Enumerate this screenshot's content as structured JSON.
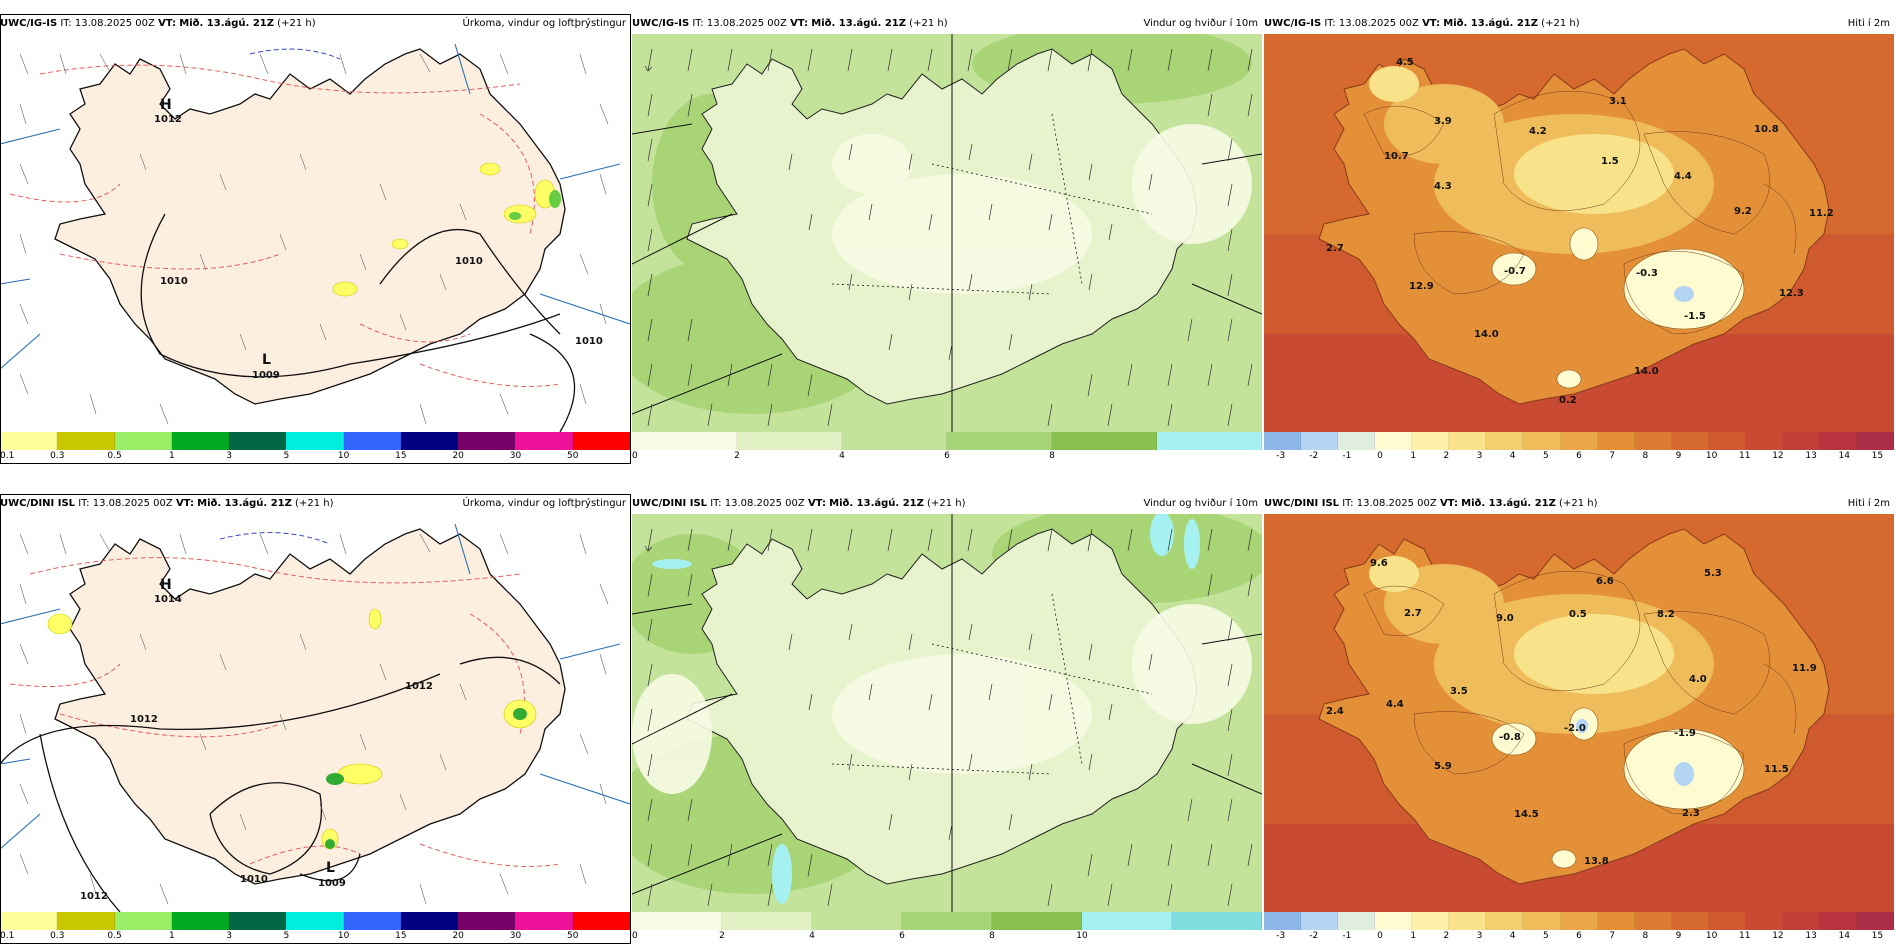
{
  "rows": [
    {
      "model": "UWC/IG-IS",
      "it_label": "IT:",
      "it": "13.08.2025 00Z",
      "vt_label": "VT:",
      "vt": "Mið. 13.ágú. 21Z",
      "lead": "(+21 h)",
      "panels": [
        {
          "kind": "precip",
          "title": "Úrkoma, vindur og loftþrýstingur",
          "H_value": "1012",
          "L_value": "1009",
          "H_label": "H",
          "L_label": "L",
          "isobar_labels": [
            "1010",
            "1010",
            "1010"
          ]
        },
        {
          "kind": "wind",
          "title": "Vindur og hviður í 10m"
        },
        {
          "kind": "temp",
          "title": "Hiti í 2m",
          "values": [
            "4.5",
            "3.9",
            "4.2",
            "3.1",
            "1.5",
            "10.8",
            "10.7",
            "4.3",
            "4.4",
            "9.2",
            "11.2",
            "2.7",
            "-0.7",
            "-0.3",
            "12.9",
            "12.3",
            "-1.5",
            "14.0",
            "14.0",
            "0.2"
          ]
        }
      ]
    },
    {
      "model": "UWC/DINI ISL",
      "it_label": "IT:",
      "it": "13.08.2025 00Z",
      "vt_label": "VT:",
      "vt": "Mið. 13.ágú. 21Z",
      "lead": "(+21 h)",
      "panels": [
        {
          "kind": "precip",
          "title": "Úrkoma, vindur og loftþrýstingur",
          "H_value": "1014",
          "L_value": "1009",
          "H_label": "H",
          "L_label": "L",
          "isobar_labels": [
            "1012",
            "1012",
            "1010",
            "1012"
          ]
        },
        {
          "kind": "wind",
          "title": "Vindur og hviður í 10m"
        },
        {
          "kind": "temp",
          "title": "Hiti í 2m",
          "values": [
            "9.6",
            "6.6",
            "5.3",
            "2.7",
            "9.0",
            "0.5",
            "8.2",
            "11.9",
            "3.5",
            "4.0",
            "2.4",
            "4.4",
            "-0.8",
            "-2.0",
            "-1.9",
            "5.9",
            "11.5",
            "2.3",
            "14.5",
            "13.8"
          ]
        }
      ]
    }
  ],
  "scales": {
    "precip": {
      "colors": [
        "#ffff99",
        "#c8c800",
        "#99ee66",
        "#00aa22",
        "#006644",
        "#00eedd",
        "#3366ff",
        "#000080",
        "#770066",
        "#ee1199",
        "#ff0000"
      ],
      "ticks": [
        "0.1",
        "0.3",
        "0.5",
        "1",
        "3",
        "5",
        "10",
        "15",
        "20",
        "30",
        "50"
      ]
    },
    "wind_row1": {
      "colors": [
        "#f7fbe4",
        "#e2f1c4",
        "#c4e39a",
        "#a6d373",
        "#88c150",
        "#a5f1f1"
      ],
      "ticks": [
        "0",
        "2",
        "4",
        "6",
        "8"
      ]
    },
    "wind_row2": {
      "colors": [
        "#f7fbe4",
        "#e2f1c4",
        "#c4e39a",
        "#a6d373",
        "#88c150",
        "#a5f1f1",
        "#7fdede"
      ],
      "ticks": [
        "0",
        "2",
        "4",
        "6",
        "8",
        "10"
      ]
    },
    "temp": {
      "colors": [
        "#8fb6e8",
        "#b3d4f2",
        "#e0eee0",
        "#fffbd0",
        "#fdf0a8",
        "#f8e38a",
        "#f2d06e",
        "#eebc5a",
        "#e9a648",
        "#e39039",
        "#dc7b31",
        "#d6692e",
        "#d05a2f",
        "#c94a33",
        "#c23e38",
        "#b9343f",
        "#ab2d47"
      ],
      "ticks": [
        "-3",
        "-2",
        "-1",
        "0",
        "1",
        "2",
        "3",
        "4",
        "5",
        "6",
        "7",
        "8",
        "9",
        "10",
        "11",
        "12",
        "13",
        "14",
        "15"
      ]
    }
  }
}
